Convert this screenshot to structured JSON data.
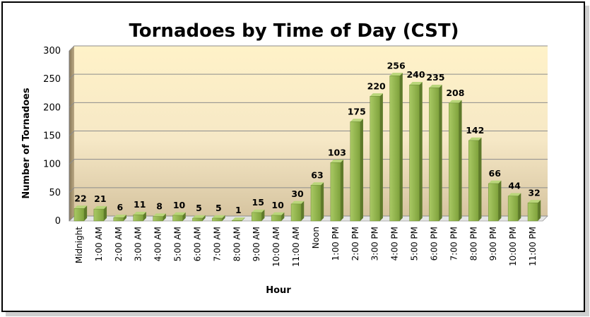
{
  "chart_data": {
    "type": "bar",
    "title": "Tornadoes by Time of Day (CST)",
    "xlabel": "Hour",
    "ylabel": "Number of Tornadoes",
    "ylim": [
      0,
      300
    ],
    "yticks": [
      0,
      50,
      100,
      150,
      200,
      250,
      300
    ],
    "grid": true,
    "legend": "none",
    "colors": {
      "bar_front": "#8db04a",
      "bar_side": "#5e7a2a",
      "bar_top": "#b9d67a",
      "wall_top": "#fff1c6",
      "wall_bottom": "#d9c8a3"
    },
    "categories": [
      "Midnight",
      "1:00 AM",
      "2:00 AM",
      "3:00 AM",
      "4:00 AM",
      "5:00 AM",
      "6:00 AM",
      "7:00 AM",
      "8:00 AM",
      "9:00 AM",
      "10:00 AM",
      "11:00 AM",
      "Noon",
      "1:00 PM",
      "2:00 PM",
      "3:00 PM",
      "4:00 PM",
      "5:00 PM",
      "6:00 PM",
      "7:00 PM",
      "8:00 PM",
      "9:00 PM",
      "10:00 PM",
      "11:00 PM"
    ],
    "values": [
      22,
      21,
      6,
      11,
      8,
      10,
      5,
      5,
      1,
      15,
      10,
      30,
      63,
      103,
      175,
      220,
      256,
      240,
      235,
      208,
      142,
      66,
      44,
      32
    ]
  }
}
